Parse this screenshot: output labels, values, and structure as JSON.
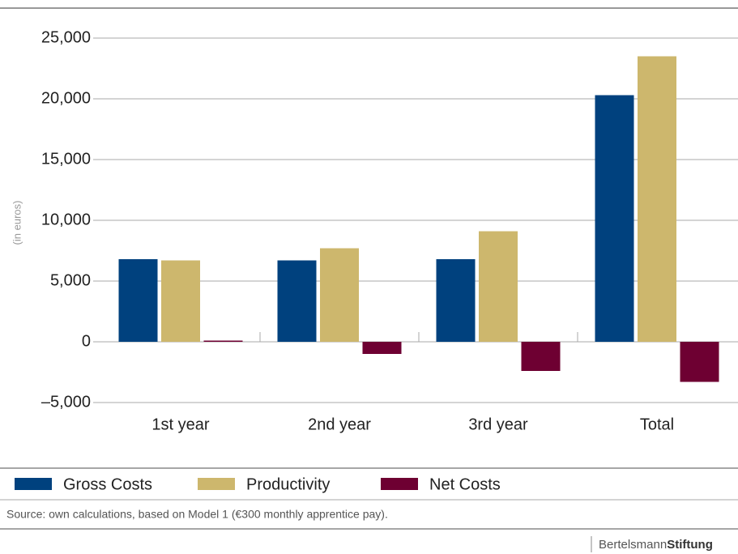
{
  "chart_data": {
    "type": "bar",
    "y_label": "(in euros)",
    "categories": [
      "1st year",
      "2nd year",
      "3rd year",
      "Total"
    ],
    "series": [
      {
        "name": "Gross Costs",
        "color": "#00417e",
        "values": [
          6800,
          6700,
          6800,
          20300
        ]
      },
      {
        "name": "Productivity",
        "color": "#cdb76d",
        "values": [
          6700,
          7700,
          9100,
          23500
        ]
      },
      {
        "name": "Net Costs",
        "color": "#6e0032",
        "values": [
          100,
          -1000,
          -2400,
          -3300
        ]
      }
    ],
    "ylim": [
      -5000,
      25000
    ],
    "yticks": [
      {
        "value": -5000,
        "label": "–5,000"
      },
      0,
      {
        "value": 5000,
        "label": "5,000"
      },
      {
        "value": 10000,
        "label": "10,000"
      },
      {
        "value": 15000,
        "label": "15,000"
      },
      {
        "value": 20000,
        "label": "20,000"
      },
      {
        "value": 25000,
        "label": "25,000"
      }
    ],
    "grid": true,
    "source": "Source: own calculations, based on Model 1 (€300 monthly apprentice pay).",
    "brand": [
      "Bertelsmann",
      "Stiftung"
    ]
  }
}
